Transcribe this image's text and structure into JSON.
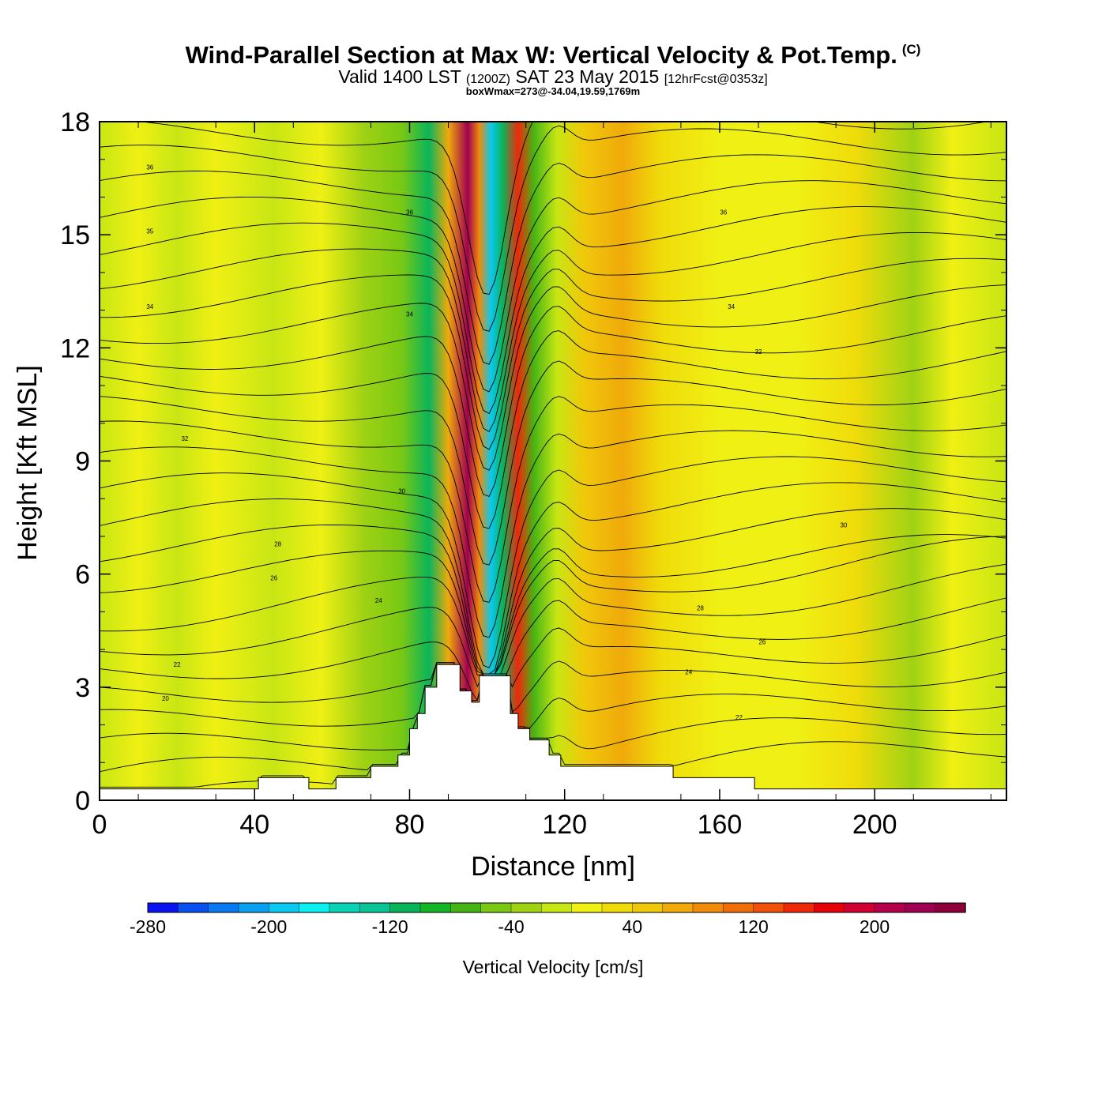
{
  "chart_data": {
    "type": "heatmap",
    "title": "Wind-Parallel Section at Max W: Vertical Velocity & Pot.Temp.",
    "title_mark": "(C)",
    "subtitle": {
      "valid": "Valid 1400 LST",
      "utc": "(1200Z)",
      "date": "SAT 23 May 2015",
      "forecast": "[12hrFcst@0353z]"
    },
    "info_line": "boxWmax=273@-34.04,19.59,1769m",
    "xlabel": "Distance [nm]",
    "ylabel": "Height [Kft MSL]",
    "xlim": [
      0,
      234
    ],
    "ylim": [
      0,
      18
    ],
    "xticks": [
      0,
      40,
      80,
      120,
      160,
      200
    ],
    "yticks": [
      0,
      3,
      6,
      9,
      12,
      15,
      18
    ],
    "colorbar": {
      "label": "Vertical Velocity [cm/s]",
      "tick_values": [
        -280,
        -200,
        -120,
        -40,
        40,
        120,
        200
      ],
      "tick_labels": [
        "-280",
        "-200",
        "-120",
        "-40",
        "40",
        "120",
        "200"
      ],
      "min": -280,
      "max": 260,
      "colors": [
        "#0a14f0",
        "#0a50f0",
        "#0a78f0",
        "#0aa0f0",
        "#0ac8f0",
        "#0af0f0",
        "#0ad2b4",
        "#0ac396",
        "#0ab45a",
        "#14b428",
        "#46b414",
        "#78c814",
        "#a0d214",
        "#c8e614",
        "#f0f014",
        "#f0dc0a",
        "#f0c80a",
        "#f0aa0a",
        "#f08c0a",
        "#f06e0a",
        "#f0500a",
        "#f0280a",
        "#e6000a",
        "#d20032",
        "#b4004b",
        "#a00050",
        "#8c003c"
      ]
    },
    "velocity_bands": [
      {
        "distance": 0,
        "w": -20
      },
      {
        "distance": 10,
        "w": 0
      },
      {
        "distance": 20,
        "w": -10
      },
      {
        "distance": 30,
        "w": 0
      },
      {
        "distance": 45,
        "w": -20
      },
      {
        "distance": 57,
        "w": 10
      },
      {
        "distance": 68,
        "w": -30
      },
      {
        "distance": 78,
        "w": -60
      },
      {
        "distance": 85,
        "w": -110
      },
      {
        "distance": 90,
        "w": 60
      },
      {
        "distance": 95,
        "w": 220
      },
      {
        "distance": 98,
        "w": 80
      },
      {
        "distance": 101,
        "w": -200
      },
      {
        "distance": 104,
        "w": -120
      },
      {
        "distance": 108,
        "w": 150
      },
      {
        "distance": 112,
        "w": -80
      },
      {
        "distance": 118,
        "w": -10
      },
      {
        "distance": 125,
        "w": 40
      },
      {
        "distance": 135,
        "w": 60
      },
      {
        "distance": 145,
        "w": 20
      },
      {
        "distance": 160,
        "w": 0
      },
      {
        "distance": 180,
        "w": 10
      },
      {
        "distance": 195,
        "w": 20
      },
      {
        "distance": 210,
        "w": -30
      },
      {
        "distance": 220,
        "w": 0
      },
      {
        "distance": 234,
        "w": -10
      }
    ],
    "terrain": [
      [
        0,
        0.3
      ],
      [
        41,
        0.3
      ],
      [
        41,
        0.6
      ],
      [
        54,
        0.6
      ],
      [
        54,
        0.3
      ],
      [
        61,
        0.3
      ],
      [
        61,
        0.6
      ],
      [
        70,
        0.6
      ],
      [
        70,
        0.9
      ],
      [
        77,
        0.9
      ],
      [
        77,
        1.2
      ],
      [
        80,
        1.2
      ],
      [
        80,
        1.9
      ],
      [
        82,
        1.9
      ],
      [
        82,
        2.3
      ],
      [
        84,
        2.3
      ],
      [
        84,
        3.0
      ],
      [
        87,
        3.0
      ],
      [
        87,
        3.6
      ],
      [
        93,
        3.6
      ],
      [
        93,
        2.9
      ],
      [
        96,
        2.9
      ],
      [
        96,
        2.6
      ],
      [
        98,
        2.6
      ],
      [
        98,
        3.3
      ],
      [
        106,
        3.3
      ],
      [
        106,
        2.3
      ],
      [
        108,
        2.3
      ],
      [
        108,
        1.9
      ],
      [
        111,
        1.9
      ],
      [
        111,
        1.6
      ],
      [
        116,
        1.6
      ],
      [
        116,
        1.2
      ],
      [
        119,
        1.2
      ],
      [
        119,
        0.9
      ],
      [
        148,
        0.9
      ],
      [
        148,
        0.6
      ],
      [
        169,
        0.6
      ],
      [
        169,
        0.3
      ],
      [
        234,
        0.3
      ]
    ],
    "isentropes": {
      "start": 18,
      "step": 1,
      "count": 25,
      "labels": [
        {
          "value": "20",
          "distance": 17,
          "height": 2.7
        },
        {
          "value": "22",
          "distance": 20,
          "height": 3.6
        },
        {
          "value": "24",
          "distance": 72,
          "height": 5.3
        },
        {
          "value": "26",
          "distance": 45,
          "height": 5.9
        },
        {
          "value": "28",
          "distance": 46,
          "height": 6.8
        },
        {
          "value": "30",
          "distance": 78,
          "height": 8.2
        },
        {
          "value": "32",
          "distance": 22,
          "height": 9.6
        },
        {
          "value": "34",
          "distance": 13,
          "height": 13.1
        },
        {
          "value": "35",
          "distance": 13,
          "height": 15.1
        },
        {
          "value": "36",
          "distance": 13,
          "height": 16.8
        },
        {
          "value": "36",
          "distance": 80,
          "height": 15.6
        },
        {
          "value": "34",
          "distance": 80,
          "height": 12.9
        },
        {
          "value": "36",
          "distance": 161,
          "height": 15.6
        },
        {
          "value": "34",
          "distance": 163,
          "height": 13.1
        },
        {
          "value": "32",
          "distance": 170,
          "height": 11.9
        },
        {
          "value": "30",
          "distance": 192,
          "height": 7.3
        },
        {
          "value": "28",
          "distance": 155,
          "height": 5.1
        },
        {
          "value": "26",
          "distance": 171,
          "height": 4.2
        },
        {
          "value": "24",
          "distance": 152,
          "height": 3.4
        },
        {
          "value": "22",
          "distance": 165,
          "height": 2.2
        }
      ]
    }
  }
}
